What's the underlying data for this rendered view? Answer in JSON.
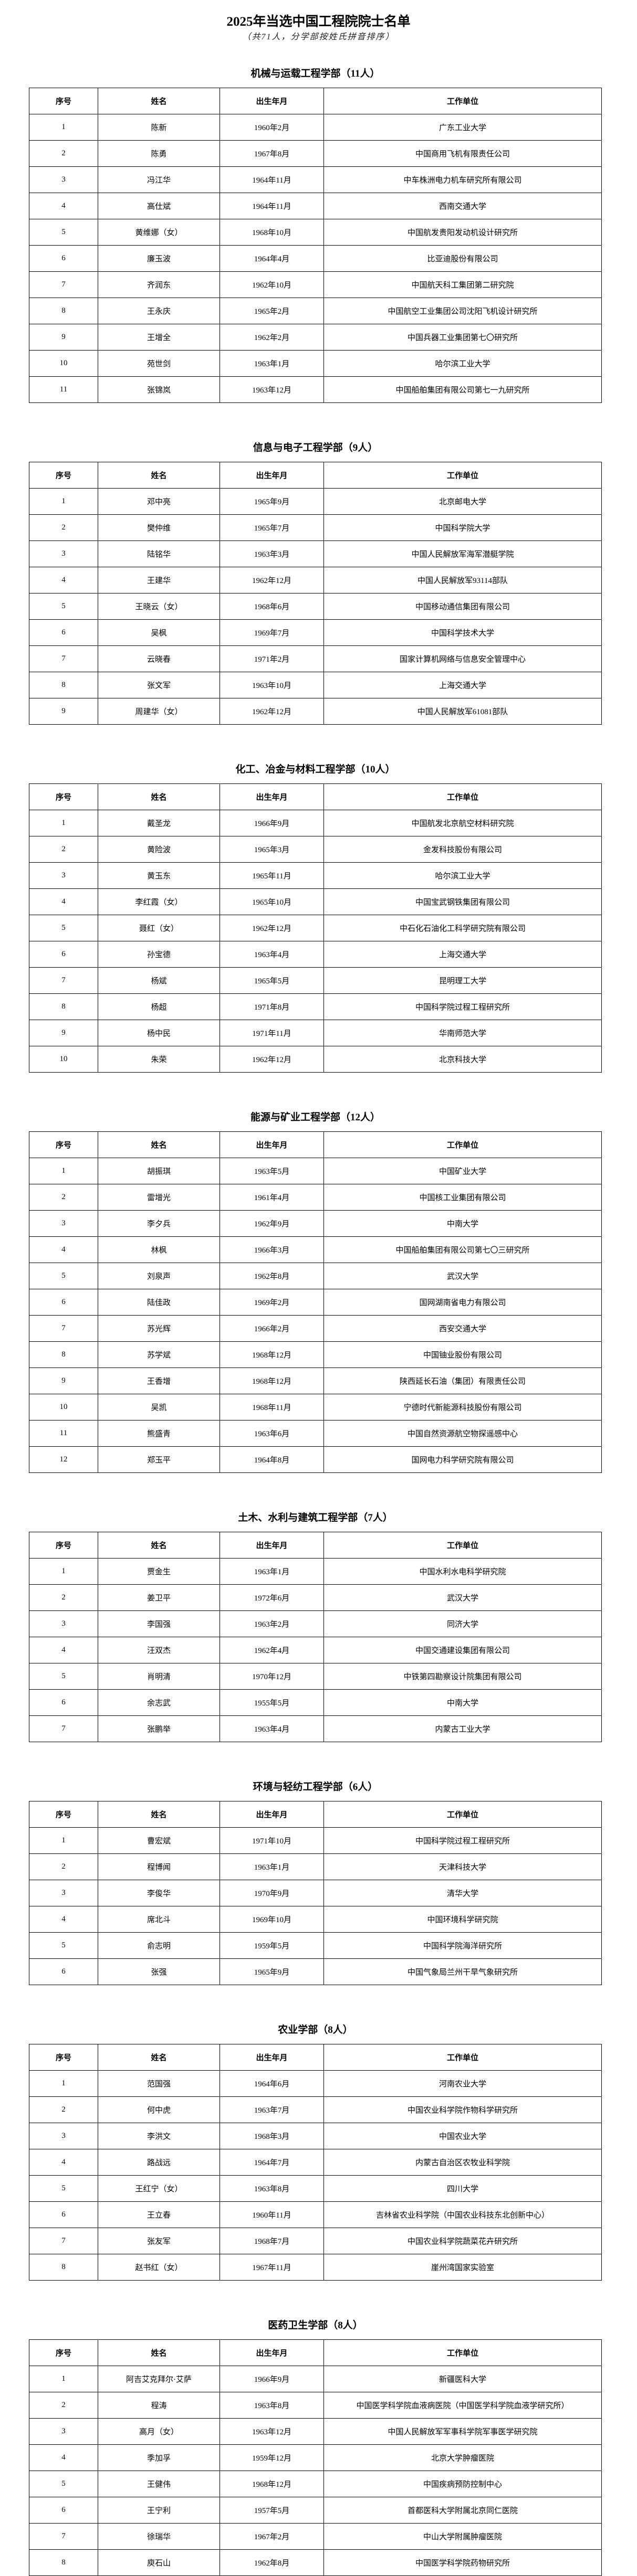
{
  "document": {
    "title": "2025年当选中国工程院院士名单",
    "subtitle": "（共71人，分学部按姓氏拼音排序）"
  },
  "table_headers": {
    "seq": "序号",
    "name": "姓名",
    "birth": "出生年月",
    "unit": "工作单位"
  },
  "sections": [
    {
      "title": "机械与运载工程学部（11人）",
      "rows": [
        [
          "1",
          "陈新",
          "1960年2月",
          "广东工业大学"
        ],
        [
          "2",
          "陈勇",
          "1967年8月",
          "中国商用飞机有限责任公司"
        ],
        [
          "3",
          "冯江华",
          "1964年11月",
          "中车株洲电力机车研究所有限公司"
        ],
        [
          "4",
          "高仕斌",
          "1964年11月",
          "西南交通大学"
        ],
        [
          "5",
          "黄维娜（女）",
          "1968年10月",
          "中国航发贵阳发动机设计研究所"
        ],
        [
          "6",
          "廉玉波",
          "1964年4月",
          "比亚迪股份有限公司"
        ],
        [
          "7",
          "齐润东",
          "1962年10月",
          "中国航天科工集团第二研究院"
        ],
        [
          "8",
          "王永庆",
          "1965年2月",
          "中国航空工业集团公司沈阳飞机设计研究所"
        ],
        [
          "9",
          "王增全",
          "1962年2月",
          "中国兵器工业集团第七〇研究所"
        ],
        [
          "10",
          "苑世剑",
          "1963年1月",
          "哈尔滨工业大学"
        ],
        [
          "11",
          "张锦岚",
          "1963年12月",
          "中国船舶集团有限公司第七一九研究所"
        ]
      ]
    },
    {
      "title": "信息与电子工程学部（9人）",
      "rows": [
        [
          "1",
          "邓中亮",
          "1965年9月",
          "北京邮电大学"
        ],
        [
          "2",
          "樊仲维",
          "1965年7月",
          "中国科学院大学"
        ],
        [
          "3",
          "陆铭华",
          "1963年3月",
          "中国人民解放军海军潜艇学院"
        ],
        [
          "4",
          "王建华",
          "1962年12月",
          "中国人民解放军93114部队"
        ],
        [
          "5",
          "王晓云（女）",
          "1968年6月",
          "中国移动通信集团有限公司"
        ],
        [
          "6",
          "吴枫",
          "1969年7月",
          "中国科学技术大学"
        ],
        [
          "7",
          "云晓春",
          "1971年2月",
          "国家计算机网络与信息安全管理中心"
        ],
        [
          "8",
          "张文军",
          "1963年10月",
          "上海交通大学"
        ],
        [
          "9",
          "周建华（女）",
          "1962年12月",
          "中国人民解放军61081部队"
        ]
      ]
    },
    {
      "title": "化工、冶金与材料工程学部（10人）",
      "rows": [
        [
          "1",
          "戴圣龙",
          "1966年9月",
          "中国航发北京航空材料研究院"
        ],
        [
          "2",
          "黄险波",
          "1965年3月",
          "金发科技股份有限公司"
        ],
        [
          "3",
          "黄玉东",
          "1965年11月",
          "哈尔滨工业大学"
        ],
        [
          "4",
          "李红霞（女）",
          "1965年10月",
          "中国宝武钢铁集团有限公司"
        ],
        [
          "5",
          "聂红（女）",
          "1962年12月",
          "中石化石油化工科学研究院有限公司"
        ],
        [
          "6",
          "孙宝德",
          "1963年4月",
          "上海交通大学"
        ],
        [
          "7",
          "杨斌",
          "1965年5月",
          "昆明理工大学"
        ],
        [
          "8",
          "杨超",
          "1971年8月",
          "中国科学院过程工程研究所"
        ],
        [
          "9",
          "杨中民",
          "1971年11月",
          "华南师范大学"
        ],
        [
          "10",
          "朱荣",
          "1962年12月",
          "北京科技大学"
        ]
      ]
    },
    {
      "title": "能源与矿业工程学部（12人）",
      "rows": [
        [
          "1",
          "胡振琪",
          "1963年5月",
          "中国矿业大学"
        ],
        [
          "2",
          "雷增光",
          "1961年4月",
          "中国核工业集团有限公司"
        ],
        [
          "3",
          "李夕兵",
          "1962年9月",
          "中南大学"
        ],
        [
          "4",
          "林枫",
          "1966年3月",
          "中国船舶集团有限公司第七〇三研究所"
        ],
        [
          "5",
          "刘泉声",
          "1962年8月",
          "武汉大学"
        ],
        [
          "6",
          "陆佳政",
          "1969年2月",
          "国网湖南省电力有限公司"
        ],
        [
          "7",
          "苏光辉",
          "1966年2月",
          "西安交通大学"
        ],
        [
          "8",
          "苏学斌",
          "1968年12月",
          "中国铀业股份有限公司"
        ],
        [
          "9",
          "王香增",
          "1968年12月",
          "陕西延长石油（集团）有限责任公司"
        ],
        [
          "10",
          "吴凯",
          "1968年11月",
          "宁德时代新能源科技股份有限公司"
        ],
        [
          "11",
          "熊盛青",
          "1963年6月",
          "中国自然资源航空物探遥感中心"
        ],
        [
          "12",
          "郑玉平",
          "1964年8月",
          "国网电力科学研究院有限公司"
        ]
      ]
    },
    {
      "title": "土木、水利与建筑工程学部（7人）",
      "rows": [
        [
          "1",
          "贾金生",
          "1963年1月",
          "中国水利水电科学研究院"
        ],
        [
          "2",
          "姜卫平",
          "1972年6月",
          "武汉大学"
        ],
        [
          "3",
          "李国强",
          "1963年2月",
          "同济大学"
        ],
        [
          "4",
          "汪双杰",
          "1962年4月",
          "中国交通建设集团有限公司"
        ],
        [
          "5",
          "肖明清",
          "1970年12月",
          "中铁第四勘察设计院集团有限公司"
        ],
        [
          "6",
          "余志武",
          "1955年5月",
          "中南大学"
        ],
        [
          "7",
          "张鹏举",
          "1963年4月",
          "内蒙古工业大学"
        ]
      ]
    },
    {
      "title": "环境与轻纺工程学部（6人）",
      "rows": [
        [
          "1",
          "曹宏斌",
          "1971年10月",
          "中国科学院过程工程研究所"
        ],
        [
          "2",
          "程博闻",
          "1963年1月",
          "天津科技大学"
        ],
        [
          "3",
          "李俊华",
          "1970年9月",
          "清华大学"
        ],
        [
          "4",
          "席北斗",
          "1969年10月",
          "中国环境科学研究院"
        ],
        [
          "5",
          "俞志明",
          "1959年5月",
          "中国科学院海洋研究所"
        ],
        [
          "6",
          "张强",
          "1965年9月",
          "中国气象局兰州干旱气象研究所"
        ]
      ]
    },
    {
      "title": "农业学部（8人）",
      "rows": [
        [
          "1",
          "范国强",
          "1964年6月",
          "河南农业大学"
        ],
        [
          "2",
          "何中虎",
          "1963年7月",
          "中国农业科学院作物科学研究所"
        ],
        [
          "3",
          "李洪文",
          "1968年3月",
          "中国农业大学"
        ],
        [
          "4",
          "路战远",
          "1964年7月",
          "内蒙古自治区农牧业科学院"
        ],
        [
          "5",
          "王红宁（女）",
          "1963年8月",
          "四川大学"
        ],
        [
          "6",
          "王立春",
          "1960年11月",
          "吉林省农业科学院（中国农业科技东北创新中心）"
        ],
        [
          "7",
          "张友军",
          "1968年7月",
          "中国农业科学院蔬菜花卉研究所"
        ],
        [
          "8",
          "赵书红（女）",
          "1967年11月",
          "崖州湾国家实验室"
        ]
      ]
    },
    {
      "title": "医药卫生学部（8人）",
      "rows": [
        [
          "1",
          "阿吉艾克拜尔·艾萨",
          "1966年9月",
          "新疆医科大学"
        ],
        [
          "2",
          "程涛",
          "1963年8月",
          "中国医学科学院血液病医院（中国医学科学院血液学研究所）"
        ],
        [
          "3",
          "高月（女）",
          "1963年12月",
          "中国人民解放军军事科学院军事医学研究院"
        ],
        [
          "4",
          "季加孚",
          "1959年12月",
          "北京大学肿瘤医院"
        ],
        [
          "5",
          "王健伟",
          "1968年12月",
          "中国疾病预防控制中心"
        ],
        [
          "6",
          "王宁利",
          "1957年5月",
          "首都医科大学附属北京同仁医院"
        ],
        [
          "7",
          "徐瑞华",
          "1967年2月",
          "中山大学附属肿瘤医院"
        ],
        [
          "8",
          "庾石山",
          "1962年8月",
          "中国医学科学院药物研究所"
        ]
      ]
    }
  ]
}
